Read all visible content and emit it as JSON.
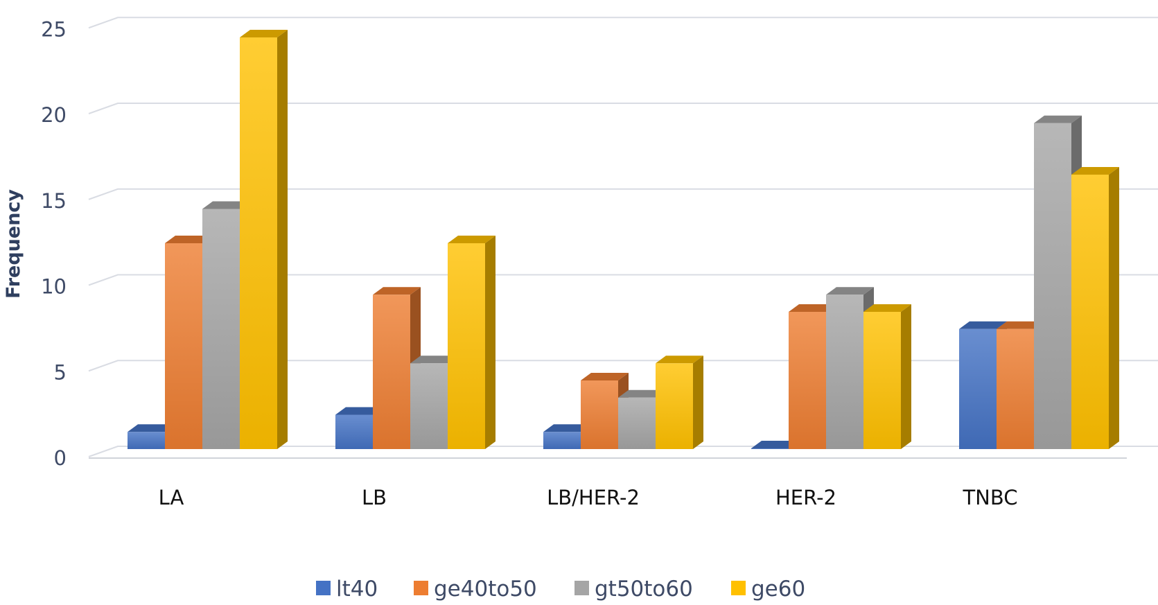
{
  "chart_data": {
    "type": "bar",
    "title": "",
    "xlabel": "",
    "ylabel": "Frequency",
    "ylim": [
      0,
      25
    ],
    "yticks": [
      "0",
      "5",
      "10",
      "15",
      "20",
      "25"
    ],
    "grid": true,
    "legend_position": "bottom",
    "categories": [
      "LA",
      "LB",
      "LB/HER-2",
      "HER-2",
      "TNBC"
    ],
    "series": [
      {
        "name": "lt40",
        "color": "#4472C4",
        "values": [
          1,
          2,
          1,
          0,
          7
        ]
      },
      {
        "name": "ge40to50",
        "color": "#ED7D31",
        "values": [
          12,
          9,
          4,
          8,
          7
        ]
      },
      {
        "name": "gt50to60",
        "color": "#A5A5A5",
        "values": [
          14,
          5,
          3,
          9,
          19
        ]
      },
      {
        "name": "ge60",
        "color": "#FFC000",
        "values": [
          24,
          12,
          5,
          8,
          16
        ]
      }
    ]
  }
}
